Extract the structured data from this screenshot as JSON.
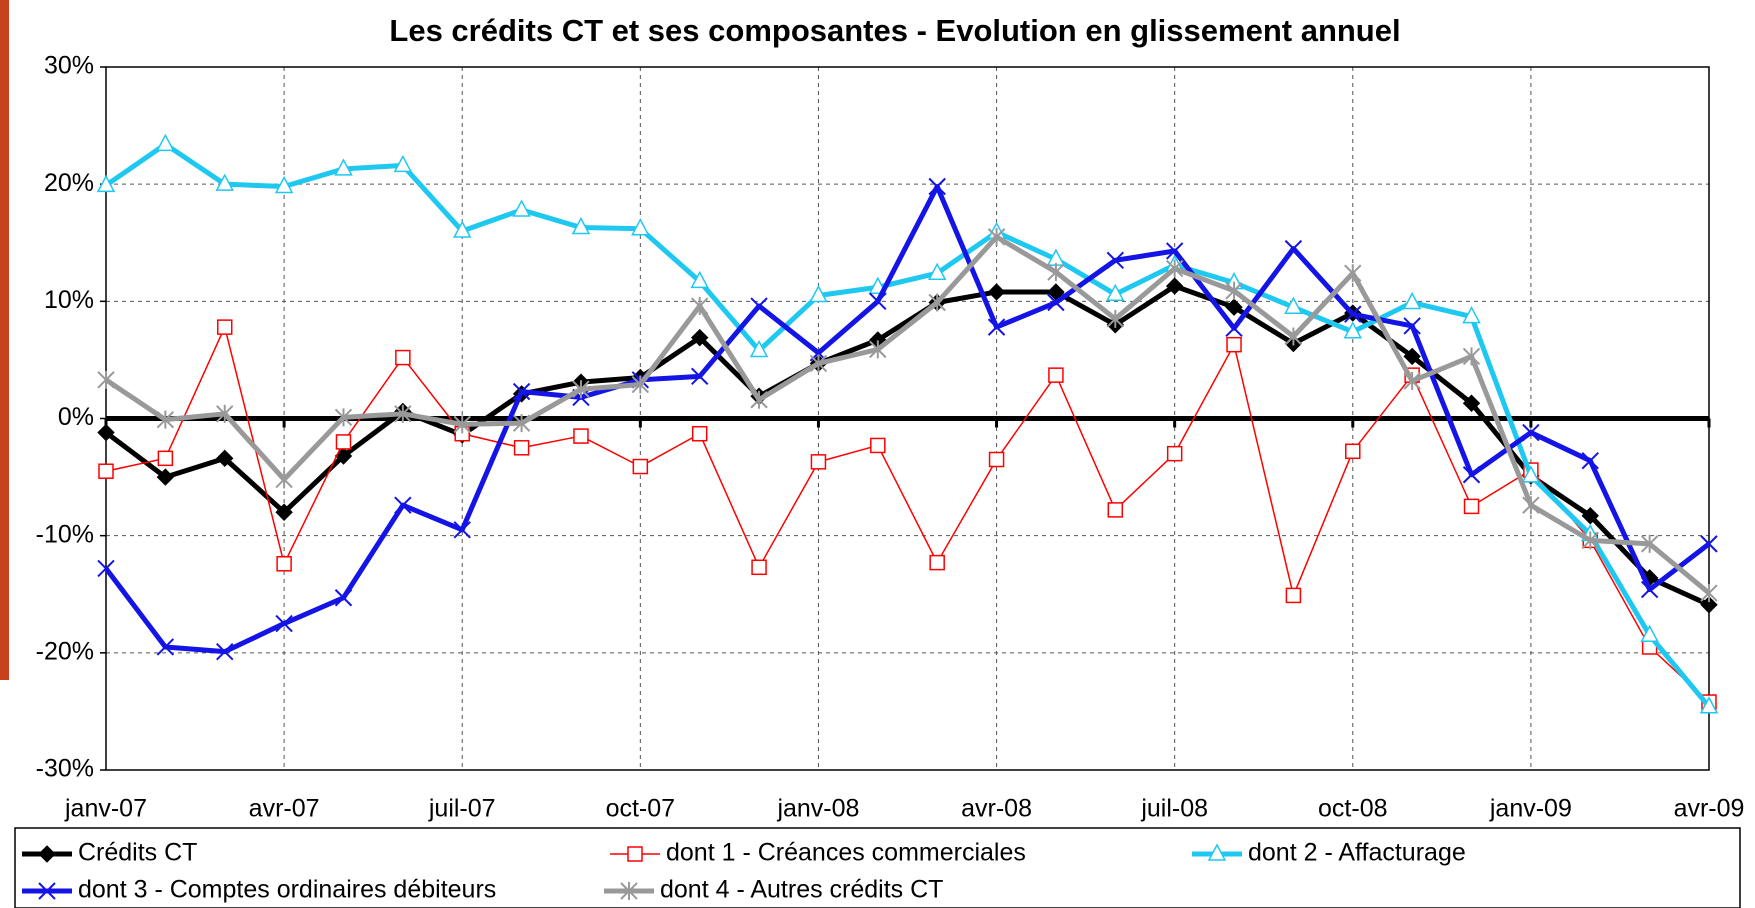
{
  "chart_data": {
    "type": "line",
    "title": "Les crédits CT et ses composantes - Evolution en glissement annuel",
    "categories": [
      "janv-07",
      null,
      null,
      "avr-07",
      null,
      null,
      "juil-07",
      null,
      null,
      "oct-07",
      null,
      null,
      "janv-08",
      null,
      null,
      "avr-08",
      null,
      null,
      "juil-08",
      null,
      null,
      "oct-08",
      null,
      null,
      "janv-09",
      null,
      null,
      "avr-09"
    ],
    "ylim": [
      -30,
      30
    ],
    "yticks": [
      {
        "value": -30,
        "label": "-30%"
      },
      {
        "value": -20,
        "label": "-20%"
      },
      {
        "value": -10,
        "label": "-10%"
      },
      {
        "value": 0,
        "label": "0%"
      },
      {
        "value": 10,
        "label": "10%"
      },
      {
        "value": 20,
        "label": "20%"
      },
      {
        "value": 30,
        "label": "30%"
      }
    ],
    "grid": true,
    "series": [
      {
        "name": "Crédits CT",
        "color": "#000000",
        "marker": "diamond",
        "values": [
          -1.2,
          -5.0,
          -3.4,
          -8.0,
          -3.2,
          0.6,
          -1.4,
          2.1,
          3.1,
          3.5,
          6.9,
          1.9,
          4.7,
          6.7,
          9.9,
          10.8,
          10.8,
          8.0,
          11.3,
          9.5,
          6.4,
          9.0,
          5.3,
          1.3,
          -4.9,
          -8.3,
          -13.6,
          -15.9
        ]
      },
      {
        "name": "dont 1 - Créances commerciales",
        "color": "#ff0000",
        "marker": "square",
        "values": [
          -4.5,
          -3.4,
          7.8,
          -12.4,
          -2.0,
          5.2,
          -1.3,
          -2.5,
          -1.5,
          -4.1,
          -1.3,
          -12.7,
          -3.7,
          -2.3,
          -12.3,
          -3.5,
          3.7,
          -7.8,
          -3.0,
          6.3,
          -15.1,
          -2.8,
          3.7,
          -7.5,
          -4.4,
          -10.4,
          -19.5,
          -24.2
        ]
      },
      {
        "name": "dont 2 - Affacturage",
        "color": "#1ec8f0",
        "marker": "triangle",
        "values": [
          19.9,
          23.4,
          20.0,
          19.8,
          21.3,
          21.6,
          16.0,
          17.8,
          16.3,
          16.2,
          11.7,
          5.8,
          10.5,
          11.2,
          12.4,
          15.9,
          13.6,
          10.6,
          13.1,
          11.6,
          9.5,
          7.4,
          9.9,
          8.7,
          -4.9,
          -9.9,
          -18.5,
          -24.6
        ]
      },
      {
        "name": "dont 3 - Comptes ordinaires débiteurs",
        "color": "#1414e6",
        "marker": "x",
        "values": [
          -12.8,
          -19.5,
          -19.9,
          -17.5,
          -15.3,
          -7.4,
          -9.5,
          2.3,
          1.8,
          3.3,
          3.6,
          9.6,
          5.6,
          10.0,
          19.8,
          7.8,
          9.9,
          13.5,
          14.3,
          7.7,
          14.5,
          8.9,
          7.9,
          -4.8,
          -1.2,
          -3.6,
          -14.6,
          -10.7
        ]
      },
      {
        "name": "dont 4 - Autres crédits CT",
        "color": "#999999",
        "marker": "star",
        "values": [
          3.3,
          -0.1,
          0.4,
          -5.2,
          0.1,
          0.4,
          -0.5,
          -0.4,
          2.5,
          2.9,
          9.6,
          1.6,
          4.7,
          5.9,
          9.9,
          15.5,
          12.5,
          8.5,
          12.8,
          10.9,
          7.0,
          12.4,
          3.2,
          5.3,
          -7.4,
          -10.4,
          -10.7,
          -14.9
        ]
      }
    ]
  }
}
